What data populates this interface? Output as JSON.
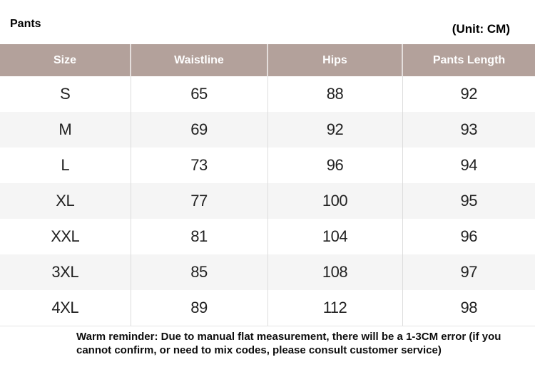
{
  "page": {
    "title": "Pants",
    "unit_label": "(Unit: CM)",
    "footer_note": "Warm reminder: Due to manual flat measurement, there will be a 1-3CM error (if you cannot confirm, or need to mix codes, please consult customer service)"
  },
  "chart_data": {
    "type": "table",
    "title": "Pants",
    "unit": "CM",
    "columns": [
      "Size",
      "Waistline",
      "Hips",
      "Pants Length"
    ],
    "rows": [
      [
        "S",
        "65",
        "88",
        "92"
      ],
      [
        "M",
        "69",
        "92",
        "93"
      ],
      [
        "L",
        "73",
        "96",
        "94"
      ],
      [
        "XL",
        "77",
        "100",
        "95"
      ],
      [
        "XXL",
        "81",
        "104",
        "96"
      ],
      [
        "3XL",
        "85",
        "108",
        "97"
      ],
      [
        "4XL",
        "89",
        "112",
        "98"
      ]
    ]
  },
  "colors": {
    "header_bg": "#b3a19b",
    "header_text": "#ffffff",
    "alt_row_bg": "#f5f5f5",
    "body_text": "#222222",
    "divider": "#dcdcdc"
  }
}
